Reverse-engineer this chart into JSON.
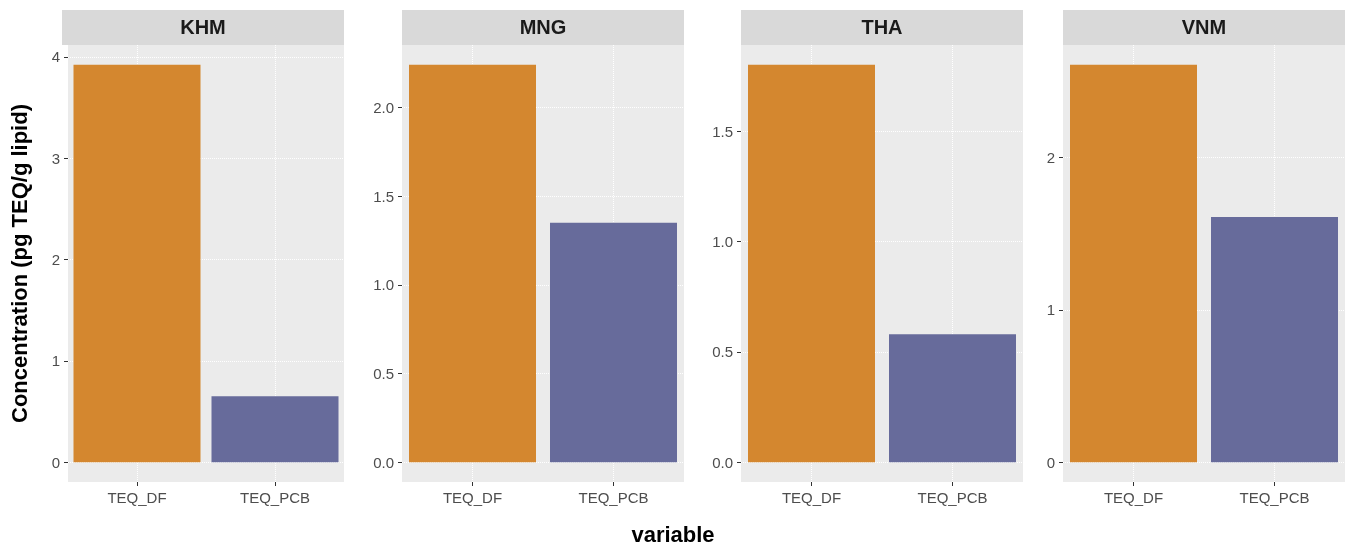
{
  "chart_data": [
    {
      "type": "bar",
      "title": "KHM",
      "ylabel": "Concentration (pg TEQ/g lipid)",
      "categories": [
        "TEQ_DF",
        "TEQ_PCB"
      ],
      "values": [
        3.92,
        0.65
      ],
      "colors": [
        "#d4872f",
        "#676b9b"
      ],
      "ylim": [
        -0.196,
        4.116
      ],
      "yticks": [
        0,
        1,
        2,
        3,
        4
      ],
      "grid": true
    },
    {
      "type": "bar",
      "title": "MNG",
      "xlabel": "variable",
      "categories": [
        "TEQ_DF",
        "TEQ_PCB"
      ],
      "values": [
        2.24,
        1.35
      ],
      "colors": [
        "#d4872f",
        "#676b9b"
      ],
      "ylim": [
        -0.112,
        2.352
      ],
      "yticks": [
        {
          "value": 0,
          "label": "0.0"
        },
        0.5,
        {
          "value": 1,
          "label": "1.0"
        },
        1.5,
        {
          "value": 2,
          "label": "2.0"
        }
      ],
      "grid": true
    },
    {
      "type": "bar",
      "title": "THA",
      "categories": [
        "TEQ_DF",
        "TEQ_PCB"
      ],
      "values": [
        1.8,
        0.58
      ],
      "colors": [
        "#d4872f",
        "#676b9b"
      ],
      "ylim": [
        -0.09,
        1.89
      ],
      "yticks": [
        {
          "value": 0,
          "label": "0.0"
        },
        0.5,
        {
          "value": 1,
          "label": "1.0"
        },
        1.5
      ],
      "grid": true
    },
    {
      "type": "bar",
      "title": "VNM",
      "categories": [
        "TEQ_DF",
        "TEQ_PCB"
      ],
      "values": [
        2.61,
        1.61
      ],
      "colors": [
        "#d4872f",
        "#676b9b"
      ],
      "ylim": [
        -0.1305,
        2.7405
      ],
      "yticks": [
        0,
        1,
        2
      ],
      "grid": true
    }
  ]
}
